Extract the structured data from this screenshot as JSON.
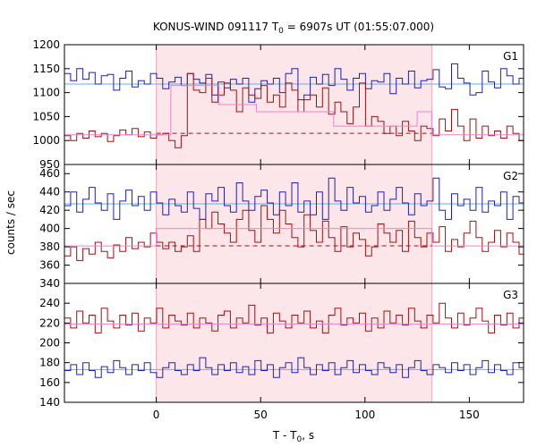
{
  "chart_data": {
    "type": "line",
    "title": {
      "main": "KONUS-WIND 091117 T",
      "sub": "0",
      "rest": " = 6907s UT (01:55:07.000)"
    },
    "xlabel": {
      "main": "T - T",
      "sub": "0",
      "rest": ", s"
    },
    "ylabel": "counts / sec",
    "xlim": [
      -44,
      176
    ],
    "x_ticks": [
      0,
      50,
      100,
      150
    ],
    "shaded_interval": [
      0,
      132
    ],
    "grid": false,
    "colors": {
      "blue": "#2020b8",
      "red": "#a01010",
      "cyan": "#5ab4e8",
      "pink": "#f080d0",
      "shade": "#fde6ea",
      "shade_stroke": "#f4a9b8"
    },
    "panels": [
      {
        "label": "G1",
        "ylim": [
          950,
          1200
        ],
        "y_ticks": [
          950,
          1000,
          1050,
          1100,
          1150,
          1200
        ],
        "x0": -44,
        "dt": 2.944,
        "series": [
          {
            "color": "blue",
            "values": [
              1140,
              1125,
              1150,
              1128,
              1142,
              1118,
              1135,
              1138,
              1105,
              1130,
              1145,
              1112,
              1125,
              1118,
              1140,
              1130,
              1108,
              1122,
              1132,
              1115,
              1140,
              1128,
              1120,
              1138,
              1095,
              1122,
              1110,
              1128,
              1118,
              1130,
              1080,
              1108,
              1125,
              1118,
              1130,
              1100,
              1140,
              1150,
              1085,
              1095,
              1132,
              1118,
              1138,
              1115,
              1150,
              1128,
              1105,
              1130,
              1140,
              1108,
              1125,
              1122,
              1140,
              1098,
              1130,
              1118,
              1145,
              1110,
              1125,
              1128,
              1148,
              1112,
              1108,
              1160,
              1130,
              1120,
              1095,
              1100,
              1145,
              1122,
              1110,
              1150,
              1135,
              1118,
              1130,
              1140,
              1125,
              1105,
              1130,
              1122,
              1118,
              1138,
              1108,
              1125,
              1115,
              1132,
              1120,
              1102,
              1128,
              1138,
              1112
            ]
          },
          {
            "color": "red",
            "values": [
              1010,
              1000,
              1015,
              1005,
              1020,
              1008,
              1015,
              998,
              1010,
              1022,
              1012,
              1025,
              1008,
              1018,
              1005,
              1012,
              1015,
              1000,
              985,
              1010,
              1140,
              1105,
              1100,
              1130,
              1080,
              1095,
              1120,
              1105,
              1060,
              1110,
              1095,
              1088,
              1115,
              1080,
              1095,
              1070,
              1120,
              1105,
              1060,
              1085,
              1095,
              1070,
              1110,
              1055,
              1080,
              1060,
              1035,
              1070,
              1120,
              1030,
              1050,
              1040,
              1015,
              1030,
              1010,
              1040,
              1020,
              1000,
              1030,
              1025,
              1010,
              1045,
              1020,
              1065,
              1030,
              1000,
              1045,
              1005,
              1030,
              1010,
              1020,
              1005,
              1030,
              1015,
              1000,
              1020,
              1010,
              1025,
              1005,
              1015,
              1018,
              1010,
              1025,
              1000,
              1015,
              1020,
              1008,
              1012,
              1020,
              1008,
              1015
            ]
          }
        ],
        "steps": [
          {
            "color": "pink",
            "points": [
              [
                -44,
                1012
              ],
              [
                7,
                1012
              ],
              [
                7,
                1115
              ],
              [
                30,
                1115
              ],
              [
                30,
                1075
              ],
              [
                48,
                1075
              ],
              [
                48,
                1060
              ],
              [
                85,
                1060
              ],
              [
                85,
                1030
              ],
              [
                125,
                1030
              ],
              [
                125,
                1060
              ],
              [
                132,
                1060
              ],
              [
                132,
                1012
              ],
              [
                176,
                1012
              ]
            ]
          }
        ],
        "hlines": [
          {
            "color": "cyan",
            "y": 1118,
            "dashed": false,
            "x": [
              -44,
              176
            ]
          },
          {
            "color": "red",
            "y": 1015,
            "dashed": true,
            "x": [
              0,
              132
            ]
          }
        ]
      },
      {
        "label": "G2",
        "ylim": [
          340,
          470
        ],
        "y_ticks": [
          340,
          360,
          380,
          400,
          420,
          440,
          460
        ],
        "x0": -44,
        "dt": 2.944,
        "series": [
          {
            "color": "blue",
            "values": [
              425,
              440,
              418,
              432,
              445,
              428,
              420,
              438,
              410,
              430,
              442,
              425,
              435,
              420,
              440,
              428,
              415,
              432,
              425,
              418,
              440,
              422,
              410,
              438,
              430,
              445,
              425,
              418,
              450,
              430,
              420,
              435,
              442,
              428,
              415,
              440,
              425,
              450,
              418,
              430,
              415,
              440,
              410,
              455,
              430,
              420,
              445,
              428,
              435,
              418,
              425,
              440,
              420,
              432,
              445,
              428,
              415,
              438,
              425,
              430,
              455,
              420,
              410,
              438,
              425,
              432,
              420,
              445,
              418,
              430,
              425,
              440,
              410,
              435,
              428,
              420,
              432,
              442,
              425,
              418,
              440,
              430,
              425,
              438,
              420,
              445,
              428,
              418,
              435,
              425,
              438
            ]
          },
          {
            "color": "red",
            "values": [
              370,
              380,
              365,
              378,
              372,
              385,
              375,
              368,
              382,
              375,
              390,
              378,
              385,
              380,
              395,
              385,
              378,
              385,
              375,
              380,
              392,
              375,
              410,
              400,
              418,
              405,
              395,
              385,
              410,
              420,
              398,
              385,
              425,
              410,
              395,
              420,
              405,
              390,
              380,
              415,
              398,
              385,
              408,
              390,
              375,
              402,
              380,
              395,
              388,
              370,
              380,
              405,
              395,
              385,
              398,
              375,
              408,
              390,
              380,
              395,
              385,
              402,
              375,
              388,
              380,
              395,
              408,
              390,
              375,
              385,
              398,
              380,
              395,
              385,
              372,
              390,
              380,
              398,
              385,
              375,
              390,
              382,
              395,
              378,
              388,
              382,
              375,
              390,
              380,
              388,
              392
            ]
          }
        ],
        "steps": [
          {
            "color": "pink",
            "points": [
              [
                -44,
                381
              ],
              [
                0,
                381
              ],
              [
                0,
                400
              ],
              [
                132,
                400
              ],
              [
                132,
                381
              ],
              [
                176,
                381
              ]
            ]
          }
        ],
        "hlines": [
          {
            "color": "cyan",
            "y": 427,
            "dashed": false,
            "x": [
              -44,
              176
            ]
          },
          {
            "color": "red",
            "y": 381,
            "dashed": true,
            "x": [
              0,
              132
            ]
          }
        ]
      },
      {
        "label": "G3",
        "ylim": [
          140,
          260
        ],
        "y_ticks": [
          140,
          160,
          180,
          200,
          220,
          240
        ],
        "x0": -44,
        "dt": 2.944,
        "series": [
          {
            "color": "red",
            "values": [
              225,
              215,
              232,
              220,
              228,
              210,
              235,
              222,
              215,
              228,
              218,
              230,
              212,
              225,
              220,
              235,
              215,
              228,
              222,
              218,
              230,
              215,
              225,
              220,
              212,
              228,
              232,
              215,
              225,
              220,
              238,
              218,
              225,
              210,
              230,
              222,
              215,
              228,
              220,
              232,
              215,
              222,
              210,
              228,
              235,
              218,
              225,
              220,
              230,
              212,
              225,
              215,
              232,
              220,
              228,
              218,
              235,
              222,
              215,
              228,
              220,
              240,
              225,
              215,
              230,
              218,
              225,
              235,
              222,
              210,
              228,
              218,
              230,
              215,
              225,
              220,
              232,
              218,
              225,
              210,
              228,
              220,
              235,
              215,
              222,
              228,
              218,
              225,
              220,
              230,
              218
            ]
          },
          {
            "color": "blue",
            "values": [
              172,
              178,
              168,
              180,
              172,
              165,
              176,
              170,
              182,
              175,
              168,
              178,
              172,
              180,
              170,
              165,
              175,
              180,
              172,
              168,
              178,
              172,
              185,
              175,
              168,
              178,
              172,
              180,
              170,
              176,
              168,
              182,
              172,
              178,
              165,
              175,
              180,
              170,
              185,
              175,
              168,
              178,
              172,
              180,
              168,
              175,
              182,
              170,
              178,
              172,
              168,
              180,
              175,
              170,
              178,
              165,
              175,
              182,
              172,
              168,
              178,
              175,
              170,
              180,
              172,
              178,
              168,
              175,
              182,
              170,
              178,
              172,
              168,
              180,
              175,
              170,
              178,
              165,
              175,
              182,
              172,
              178,
              168,
              175,
              180,
              170,
              178,
              172,
              175,
              168,
              178
            ]
          }
        ],
        "steps": [
          {
            "color": "pink",
            "points": [
              [
                -44,
                219
              ],
              [
                176,
                219
              ]
            ]
          }
        ],
        "hlines": [
          {
            "color": "cyan",
            "y": 173,
            "dashed": false,
            "x": [
              -44,
              176
            ]
          }
        ]
      }
    ]
  }
}
